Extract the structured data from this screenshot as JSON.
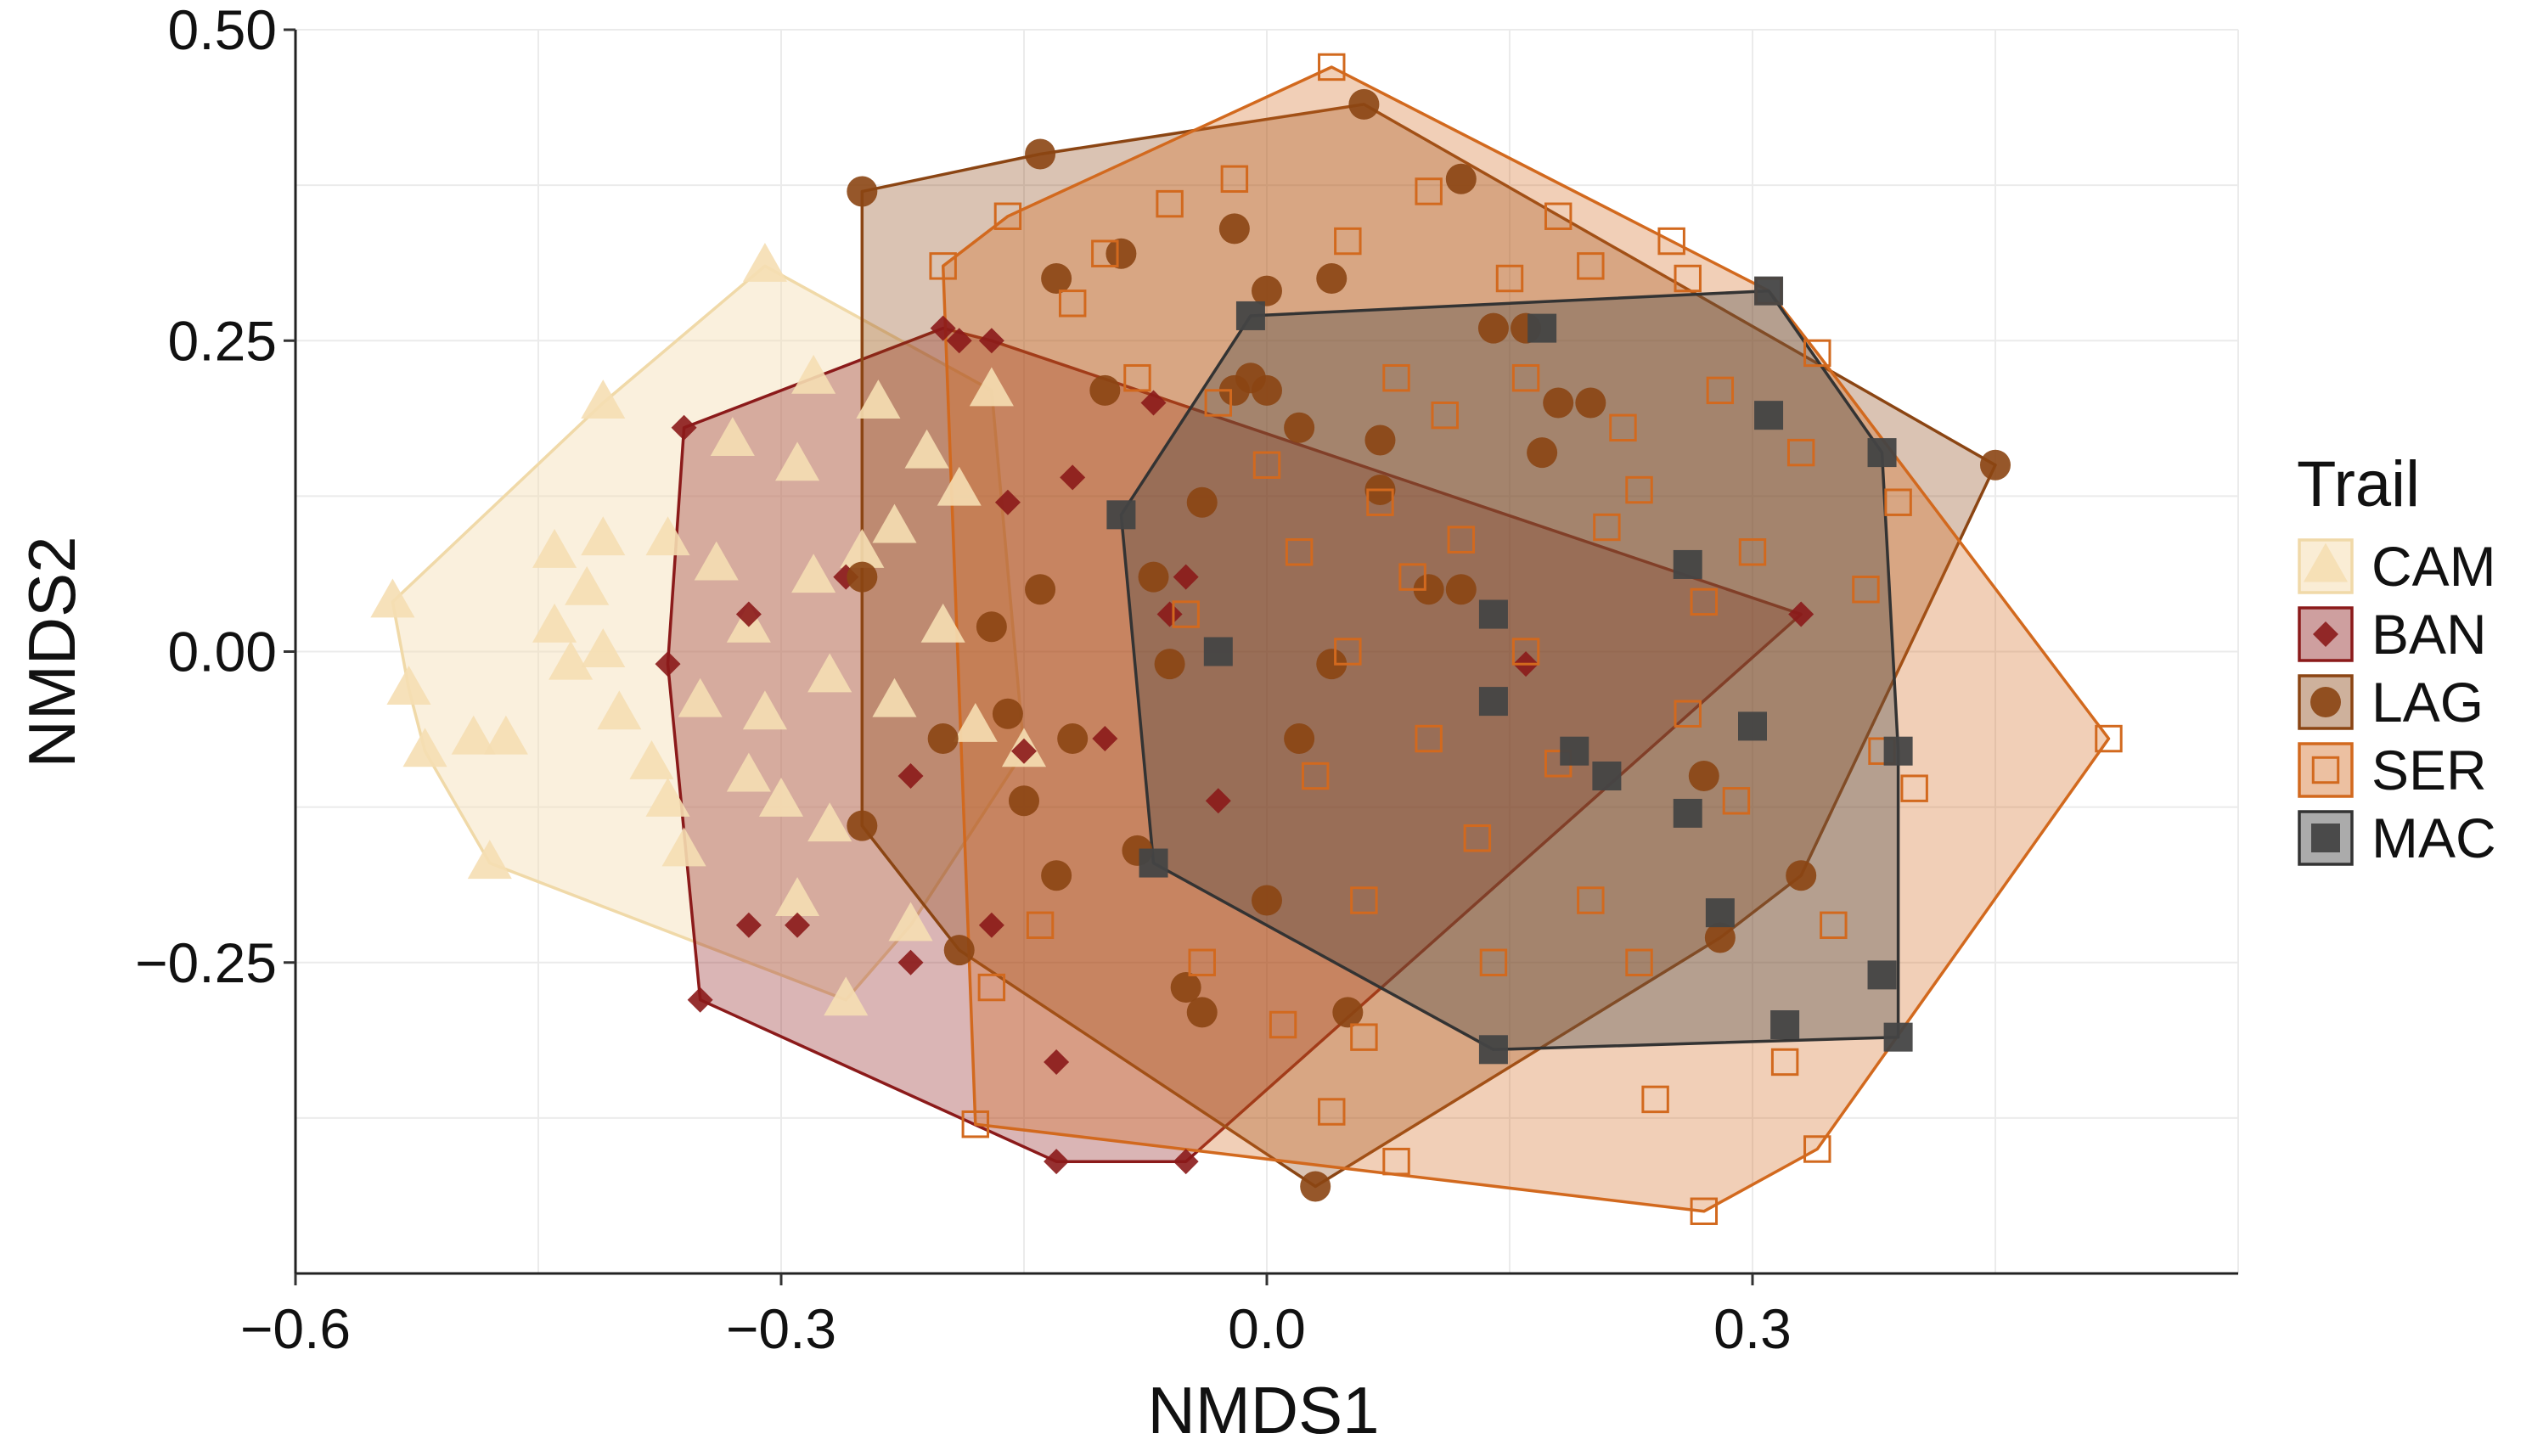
{
  "chart_data": {
    "type": "scatter",
    "title": "",
    "xlabel": "NMDS1",
    "ylabel": "NMDS2",
    "xlim": [
      -0.6,
      0.6
    ],
    "ylim": [
      -0.5,
      0.5
    ],
    "xticks": [
      -0.6,
      -0.3,
      0.0,
      0.3
    ],
    "xtick_labels": [
      "−0.6",
      "−0.3",
      "0.0",
      "0.3"
    ],
    "yticks": [
      -0.25,
      0.0,
      0.25,
      0.5
    ],
    "ytick_labels": [
      "−0.25",
      "0.00",
      "0.25",
      "0.50"
    ],
    "grid": true,
    "legend": {
      "title": "Trail",
      "position": "right"
    },
    "series": [
      {
        "name": "CAM",
        "marker": "triangle",
        "color": "#F5DEB3",
        "points": [
          [
            -0.54,
            0.04
          ],
          [
            -0.53,
            -0.03
          ],
          [
            -0.52,
            -0.08
          ],
          [
            -0.49,
            -0.07
          ],
          [
            -0.48,
            -0.17
          ],
          [
            -0.47,
            -0.07
          ],
          [
            -0.44,
            0.08
          ],
          [
            -0.44,
            0.02
          ],
          [
            -0.43,
            -0.01
          ],
          [
            -0.42,
            0.05
          ],
          [
            -0.41,
            0.2
          ],
          [
            -0.41,
            0.09
          ],
          [
            -0.41,
            0.0
          ],
          [
            -0.4,
            -0.05
          ],
          [
            -0.38,
            -0.09
          ],
          [
            -0.37,
            0.09
          ],
          [
            -0.37,
            -0.12
          ],
          [
            -0.36,
            -0.16
          ],
          [
            -0.35,
            -0.04
          ],
          [
            -0.34,
            0.07
          ],
          [
            -0.33,
            0.17
          ],
          [
            -0.32,
            0.02
          ],
          [
            -0.32,
            -0.1
          ],
          [
            -0.31,
            0.31
          ],
          [
            -0.31,
            -0.05
          ],
          [
            -0.3,
            -0.12
          ],
          [
            -0.29,
            0.15
          ],
          [
            -0.29,
            -0.2
          ],
          [
            -0.28,
            0.22
          ],
          [
            -0.28,
            0.06
          ],
          [
            -0.27,
            -0.02
          ],
          [
            -0.27,
            -0.14
          ],
          [
            -0.26,
            -0.28
          ],
          [
            -0.25,
            0.08
          ],
          [
            -0.24,
            0.2
          ],
          [
            -0.23,
            0.1
          ],
          [
            -0.23,
            -0.04
          ],
          [
            -0.22,
            -0.22
          ],
          [
            -0.21,
            0.16
          ],
          [
            -0.2,
            0.02
          ],
          [
            -0.19,
            0.13
          ],
          [
            -0.18,
            -0.06
          ],
          [
            -0.17,
            0.21
          ],
          [
            -0.15,
            -0.08
          ]
        ]
      },
      {
        "name": "BAN",
        "marker": "diamond",
        "color": "#8B1A1A",
        "points": [
          [
            -0.36,
            0.18
          ],
          [
            -0.37,
            -0.01
          ],
          [
            -0.35,
            -0.28
          ],
          [
            -0.32,
            0.03
          ],
          [
            -0.32,
            -0.22
          ],
          [
            -0.29,
            -0.22
          ],
          [
            -0.26,
            0.06
          ],
          [
            -0.22,
            -0.1
          ],
          [
            -0.22,
            -0.25
          ],
          [
            -0.2,
            0.26
          ],
          [
            -0.19,
            0.25
          ],
          [
            -0.17,
            0.25
          ],
          [
            -0.17,
            -0.22
          ],
          [
            -0.16,
            0.12
          ],
          [
            -0.15,
            -0.08
          ],
          [
            -0.13,
            -0.33
          ],
          [
            -0.13,
            -0.41
          ],
          [
            -0.12,
            0.14
          ],
          [
            -0.1,
            -0.07
          ],
          [
            -0.07,
            0.2
          ],
          [
            -0.06,
            0.03
          ],
          [
            -0.05,
            0.06
          ],
          [
            -0.05,
            -0.41
          ],
          [
            -0.03,
            -0.12
          ],
          [
            0.16,
            -0.01
          ],
          [
            0.33,
            0.03
          ]
        ]
      },
      {
        "name": "LAG",
        "marker": "circle",
        "color": "#8B4513",
        "points": [
          [
            -0.25,
            0.37
          ],
          [
            -0.25,
            0.06
          ],
          [
            -0.25,
            -0.14
          ],
          [
            -0.2,
            -0.07
          ],
          [
            -0.19,
            -0.24
          ],
          [
            -0.17,
            0.02
          ],
          [
            -0.16,
            -0.05
          ],
          [
            -0.15,
            -0.12
          ],
          [
            -0.14,
            0.05
          ],
          [
            -0.14,
            0.4
          ],
          [
            -0.13,
            0.3
          ],
          [
            -0.13,
            -0.18
          ],
          [
            -0.12,
            -0.07
          ],
          [
            -0.1,
            0.21
          ],
          [
            -0.09,
            0.32
          ],
          [
            -0.08,
            -0.16
          ],
          [
            -0.07,
            0.06
          ],
          [
            -0.06,
            -0.01
          ],
          [
            -0.05,
            -0.27
          ],
          [
            -0.04,
            0.12
          ],
          [
            -0.04,
            -0.29
          ],
          [
            -0.02,
            0.34
          ],
          [
            -0.02,
            0.21
          ],
          [
            -0.01,
            0.22
          ],
          [
            0.0,
            0.29
          ],
          [
            0.0,
            0.21
          ],
          [
            0.0,
            -0.2
          ],
          [
            0.02,
            0.18
          ],
          [
            0.02,
            -0.07
          ],
          [
            0.03,
            -0.43
          ],
          [
            0.04,
            0.3
          ],
          [
            0.04,
            -0.01
          ],
          [
            0.05,
            -0.29
          ],
          [
            0.06,
            0.44
          ],
          [
            0.07,
            0.17
          ],
          [
            0.07,
            0.13
          ],
          [
            0.1,
            0.05
          ],
          [
            0.12,
            0.38
          ],
          [
            0.12,
            0.05
          ],
          [
            0.14,
            0.26
          ],
          [
            0.16,
            0.26
          ],
          [
            0.17,
            0.16
          ],
          [
            0.18,
            0.2
          ],
          [
            0.2,
            0.2
          ],
          [
            0.27,
            -0.1
          ],
          [
            0.28,
            -0.23
          ],
          [
            0.33,
            -0.18
          ],
          [
            0.45,
            0.15
          ]
        ]
      },
      {
        "name": "SER",
        "marker": "square-open",
        "color": "#D2691E",
        "points": [
          [
            -0.2,
            0.31
          ],
          [
            -0.18,
            -0.38
          ],
          [
            -0.17,
            -0.27
          ],
          [
            -0.16,
            0.35
          ],
          [
            -0.14,
            -0.22
          ],
          [
            -0.12,
            0.28
          ],
          [
            -0.1,
            0.32
          ],
          [
            -0.08,
            0.22
          ],
          [
            -0.06,
            0.36
          ],
          [
            -0.05,
            0.03
          ],
          [
            -0.04,
            -0.25
          ],
          [
            -0.03,
            0.2
          ],
          [
            -0.02,
            0.38
          ],
          [
            0.0,
            0.15
          ],
          [
            0.01,
            -0.3
          ],
          [
            0.02,
            0.08
          ],
          [
            0.03,
            -0.1
          ],
          [
            0.04,
            -0.37
          ],
          [
            0.04,
            0.47
          ],
          [
            0.05,
            0.33
          ],
          [
            0.05,
            0.0
          ],
          [
            0.06,
            -0.2
          ],
          [
            0.06,
            -0.31
          ],
          [
            0.07,
            0.12
          ],
          [
            0.08,
            -0.41
          ],
          [
            0.08,
            0.22
          ],
          [
            0.09,
            0.06
          ],
          [
            0.1,
            0.37
          ],
          [
            0.1,
            -0.07
          ],
          [
            0.11,
            0.19
          ],
          [
            0.12,
            0.09
          ],
          [
            0.13,
            -0.15
          ],
          [
            0.14,
            -0.25
          ],
          [
            0.15,
            0.3
          ],
          [
            0.16,
            0.22
          ],
          [
            0.16,
            0.0
          ],
          [
            0.18,
            0.35
          ],
          [
            0.18,
            -0.09
          ],
          [
            0.2,
            0.31
          ],
          [
            0.2,
            -0.2
          ],
          [
            0.21,
            0.1
          ],
          [
            0.22,
            0.18
          ],
          [
            0.23,
            0.13
          ],
          [
            0.23,
            -0.25
          ],
          [
            0.24,
            -0.36
          ],
          [
            0.25,
            0.33
          ],
          [
            0.26,
            0.3
          ],
          [
            0.26,
            -0.05
          ],
          [
            0.27,
            0.04
          ],
          [
            0.27,
            -0.45
          ],
          [
            0.28,
            0.21
          ],
          [
            0.29,
            -0.12
          ],
          [
            0.3,
            0.08
          ],
          [
            0.31,
            0.29
          ],
          [
            0.32,
            -0.33
          ],
          [
            0.33,
            0.16
          ],
          [
            0.34,
            -0.4
          ],
          [
            0.34,
            0.24
          ],
          [
            0.35,
            -0.22
          ],
          [
            0.37,
            0.05
          ],
          [
            0.38,
            -0.08
          ],
          [
            0.39,
            0.12
          ],
          [
            0.4,
            -0.11
          ],
          [
            0.52,
            -0.07
          ]
        ]
      },
      {
        "name": "MAC",
        "marker": "square",
        "color": "#444444",
        "points": [
          [
            -0.09,
            0.11
          ],
          [
            -0.07,
            -0.17
          ],
          [
            -0.03,
            0.0
          ],
          [
            -0.01,
            0.27
          ],
          [
            0.14,
            0.03
          ],
          [
            0.14,
            -0.04
          ],
          [
            0.14,
            -0.32
          ],
          [
            0.17,
            0.26
          ],
          [
            0.19,
            -0.08
          ],
          [
            0.21,
            -0.1
          ],
          [
            0.26,
            0.07
          ],
          [
            0.26,
            -0.13
          ],
          [
            0.28,
            -0.21
          ],
          [
            0.3,
            -0.06
          ],
          [
            0.31,
            0.29
          ],
          [
            0.31,
            0.19
          ],
          [
            0.32,
            -0.3
          ],
          [
            0.38,
            0.16
          ],
          [
            0.38,
            -0.26
          ],
          [
            0.39,
            -0.31
          ],
          [
            0.39,
            -0.08
          ]
        ]
      }
    ]
  }
}
